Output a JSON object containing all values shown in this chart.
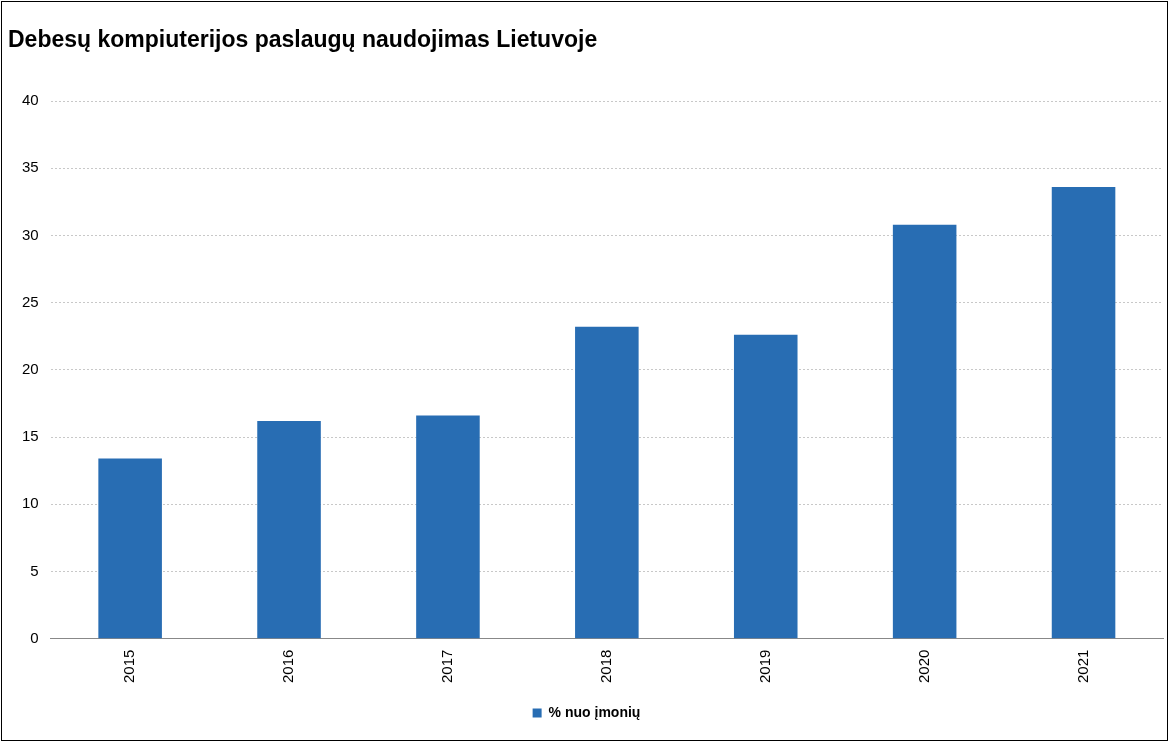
{
  "chart_data": {
    "type": "bar",
    "title": "Debesų kompiuterijos paslaugų naudojimas Lietuvoje",
    "categories": [
      "2015",
      "2016",
      "2017",
      "2018",
      "2019",
      "2020",
      "2021"
    ],
    "series": [
      {
        "name": "% nuo įmonių",
        "color": "#286db3",
        "values": [
          13.4,
          16.2,
          16.6,
          23.2,
          22.6,
          30.8,
          33.6
        ]
      }
    ],
    "ylim": [
      0,
      40
    ],
    "yticks": [
      0,
      5,
      10,
      15,
      20,
      25,
      30,
      35,
      40
    ],
    "grid": "y",
    "legend": "bottom"
  }
}
